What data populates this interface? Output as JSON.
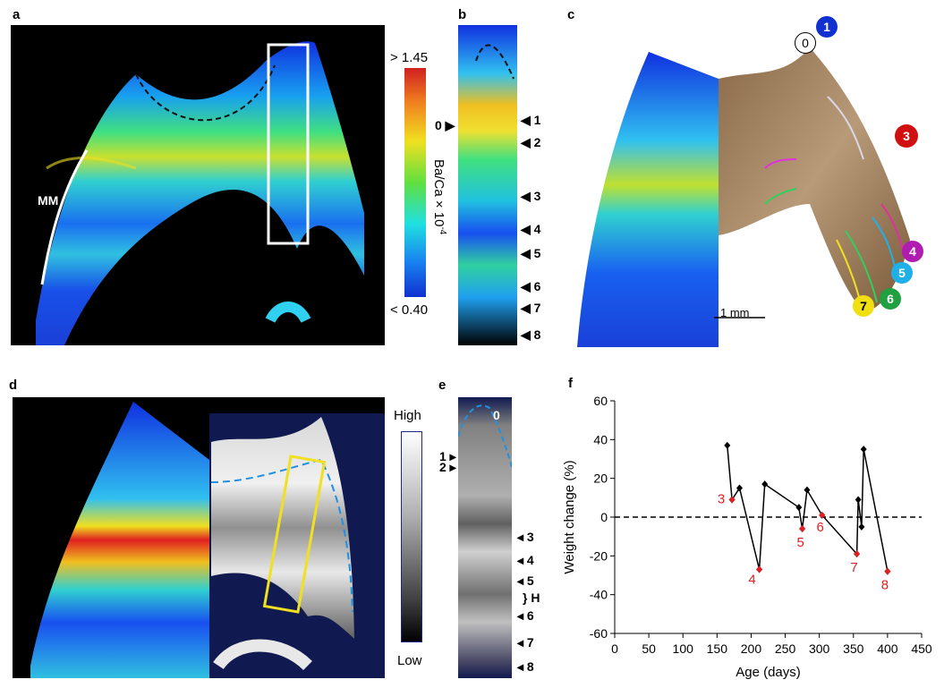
{
  "panels": {
    "a": {
      "label": "a",
      "mm_label": "MM"
    },
    "colorbar_a": {
      "max_label": "> 1.45",
      "min_label": "< 0.40",
      "title": "Ba/Ca × 10",
      "exponent": "-4"
    },
    "b": {
      "label": "b",
      "marker_left": "0",
      "markers": [
        "1",
        "2",
        "3",
        "4",
        "5",
        "6",
        "7",
        "8"
      ]
    },
    "c": {
      "label": "c",
      "circle_labels": [
        {
          "text": "0",
          "color": "#ffffff"
        },
        {
          "text": "1",
          "color": "#1030d0"
        },
        {
          "text": "3",
          "color": "#d01010"
        },
        {
          "text": "4",
          "color": "#b01cb0"
        },
        {
          "text": "5",
          "color": "#20b0e8"
        },
        {
          "text": "6",
          "color": "#20a040"
        },
        {
          "text": "7",
          "color": "#f0e010"
        }
      ],
      "scale_bar": "1 mm"
    },
    "d": {
      "label": "d"
    },
    "colorbar_d": {
      "max_label": "High",
      "min_label": "Low"
    },
    "e": {
      "label": "e",
      "marker_top": "0",
      "markers_left": [
        "1",
        "2"
      ],
      "markers_right": [
        "3",
        "4",
        "5",
        "H",
        "6",
        "7",
        "8"
      ]
    },
    "f": {
      "label": "f"
    }
  },
  "chart_data": {
    "type": "line",
    "xlabel": "Age (days)",
    "ylabel": "Weight change (%)",
    "xlim": [
      0,
      450
    ],
    "ylim": [
      -60,
      60
    ],
    "xticks": [
      0,
      50,
      100,
      150,
      200,
      250,
      300,
      350,
      400,
      450
    ],
    "yticks": [
      -60,
      -40,
      -20,
      0,
      20,
      40,
      60
    ],
    "reference_line": {
      "y": 0,
      "style": "dashed"
    },
    "series": [
      {
        "color": "#000000",
        "x": [
          165,
          172,
          183,
          212,
          220,
          270,
          275,
          282,
          304,
          355,
          357,
          362,
          365,
          400
        ],
        "y": [
          37,
          9,
          15,
          -27,
          17,
          5,
          -6,
          14,
          1,
          -19,
          9,
          -5,
          35,
          -28
        ]
      }
    ],
    "annotations": [
      {
        "text": "3",
        "x": 172,
        "y": 9,
        "color": "#e02020"
      },
      {
        "text": "4",
        "x": 212,
        "y": -27,
        "color": "#e02020"
      },
      {
        "text": "5",
        "x": 275,
        "y": -6,
        "color": "#e02020"
      },
      {
        "text": "6",
        "x": 304,
        "y": 1,
        "color": "#e02020"
      },
      {
        "text": "7",
        "x": 355,
        "y": -19,
        "color": "#e02020"
      },
      {
        "text": "8",
        "x": 400,
        "y": -28,
        "color": "#e02020"
      }
    ]
  }
}
